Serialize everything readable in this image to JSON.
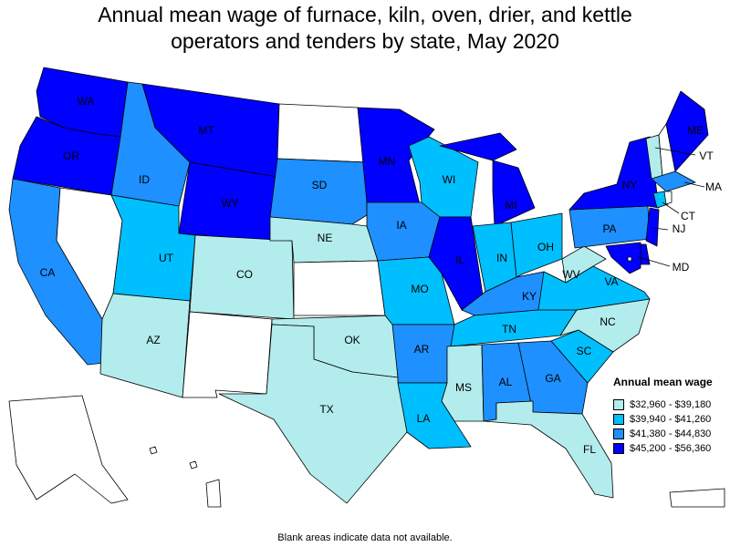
{
  "title_line1": "Annual mean wage of furnace, kiln, oven, drier, and kettle",
  "title_line2": "operators and tenders by state, May 2020",
  "legend": {
    "title": "Annual mean wage",
    "bins": [
      {
        "label": "$32,960 - $39,180",
        "color": "#b3ecec"
      },
      {
        "label": "$39,940 - $41,260",
        "color": "#00bfff"
      },
      {
        "label": "$41,380 - $44,830",
        "color": "#1e90ff"
      },
      {
        "label": "$45,200 - $56,360",
        "color": "#0000ff"
      }
    ],
    "no_data_color": "#ffffff"
  },
  "footnote": "Blank areas indicate data not available.",
  "states": {
    "WA": 3,
    "OR": 3,
    "CA": 2,
    "NV": null,
    "ID": 2,
    "MT": 3,
    "WY": 3,
    "UT": 1,
    "AZ": 0,
    "CO": 0,
    "NM": null,
    "ND": null,
    "SD": 2,
    "NE": 0,
    "KS": null,
    "OK": 0,
    "TX": 0,
    "MN": 3,
    "IA": 2,
    "MO": 1,
    "AR": 2,
    "LA": 1,
    "WI": 1,
    "IL": 3,
    "MI": 3,
    "IN": 1,
    "OH": 1,
    "KY": 2,
    "TN": 1,
    "MS": 0,
    "AL": 2,
    "GA": 2,
    "FL": 0,
    "SC": 1,
    "NC": 0,
    "VA": 1,
    "WV": 0,
    "PA": 2,
    "NY": 3,
    "VT": 0,
    "NH": null,
    "ME": 3,
    "MA": 2,
    "CT": 1,
    "RI": null,
    "NJ": 3,
    "DE": 3,
    "MD": 3,
    "DC": null,
    "AK": null,
    "HI": null,
    "PR": null
  }
}
